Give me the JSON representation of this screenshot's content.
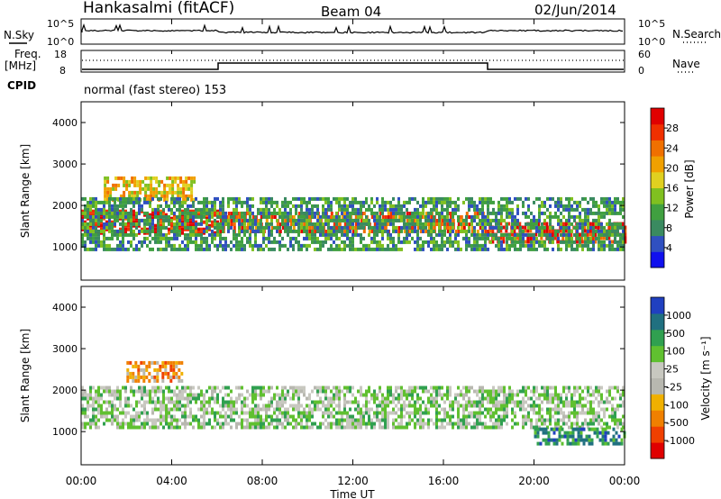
{
  "header": {
    "title": "Hankasalmi (fitACF)",
    "beam": "Beam 04",
    "date": "02/Jun/2014"
  },
  "top_panels": {
    "nsky_label": "N.Sky",
    "nsky_ticks": [
      "10^5",
      "10^0"
    ],
    "nsearch_label": "N.Search",
    "nsearch_ticks": [
      "10^5",
      "10^0"
    ],
    "freq_label_1": "Freq.",
    "freq_label_2": "[MHz]",
    "freq_ticks": [
      "18",
      "8"
    ],
    "nave_label": "Nave",
    "nave_ticks": [
      "60",
      "0"
    ],
    "cpid_label": "CPID",
    "cpid_text": "normal (fast stereo) 153"
  },
  "chart_data": [
    {
      "type": "heatmap",
      "name": "power",
      "ylabel": "Slant Range [km]",
      "yticks": [
        "1000",
        "2000",
        "3000",
        "4000"
      ],
      "ylim": [
        200,
        4500
      ],
      "xlabel": "Time UT",
      "xticks": [
        "00:00",
        "04:00",
        "08:00",
        "12:00",
        "16:00",
        "20:00",
        "00:00"
      ],
      "xlim_hours": [
        0,
        24
      ],
      "colorbar": {
        "label": "Power [dB]",
        "ticks": [
          "4",
          "8",
          "12",
          "16",
          "20",
          "24",
          "28"
        ],
        "colors": [
          "#1010ee",
          "#3050c0",
          "#3a8a60",
          "#40a040",
          "#80c020",
          "#e0d020",
          "#f0a000",
          "#f07000",
          "#f03000",
          "#e00000"
        ]
      },
      "bands": [
        {
          "t": [
            0,
            6
          ],
          "r": [
            1350,
            1900
          ],
          "level": 9
        },
        {
          "t": [
            6,
            18
          ],
          "r": [
            1400,
            1850
          ],
          "level": 8
        },
        {
          "t": [
            18,
            24
          ],
          "r": [
            1100,
            1600
          ],
          "level": 9
        },
        {
          "t": [
            1,
            5
          ],
          "r": [
            2100,
            2700
          ],
          "level": 6
        },
        {
          "t": [
            0,
            24
          ],
          "r": [
            900,
            2200
          ],
          "level": 3
        }
      ]
    },
    {
      "type": "heatmap",
      "name": "velocity",
      "ylabel": "Slant Range [km]",
      "yticks": [
        "1000",
        "2000",
        "3000",
        "4000"
      ],
      "ylim": [
        200,
        4500
      ],
      "xlabel": "Time UT",
      "xticks": [
        "00:00",
        "04:00",
        "08:00",
        "12:00",
        "16:00",
        "20:00",
        "00:00"
      ],
      "xlim_hours": [
        0,
        24
      ],
      "colorbar": {
        "label": "Velocity [m s⁻¹]",
        "ticks": [
          "1000",
          "500",
          "100",
          "25",
          "-25",
          "-100",
          "-500",
          "-1000"
        ],
        "colors": [
          "#2040c0",
          "#207080",
          "#30a050",
          "#60c030",
          "#c8c8c0",
          "#b8b8b0",
          "#f0b000",
          "#f08000",
          "#f04000",
          "#e00000"
        ]
      },
      "bands": [
        {
          "t": [
            0,
            24
          ],
          "r": [
            1100,
            2100
          ],
          "level": 4
        },
        {
          "t": [
            2,
            4.5
          ],
          "r": [
            2200,
            2700
          ],
          "level": 7
        },
        {
          "t": [
            20,
            24
          ],
          "r": [
            700,
            1100
          ],
          "level": 2
        }
      ]
    }
  ]
}
